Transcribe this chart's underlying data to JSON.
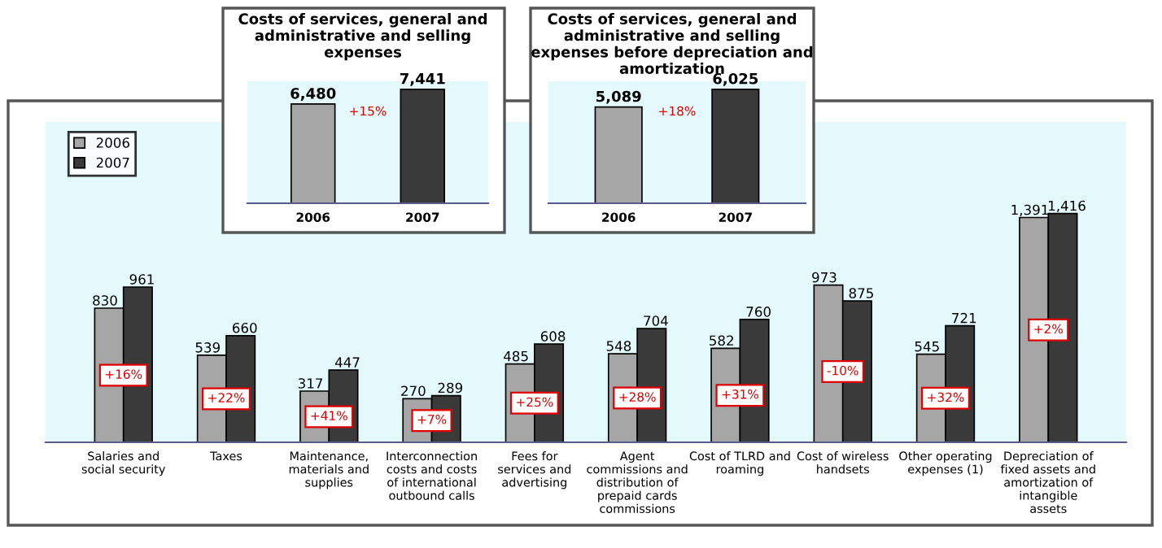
{
  "chart_data": [
    {
      "type": "bar",
      "title": "Costs of services, general and administrative and selling expenses",
      "categories": [
        "2006",
        "2007"
      ],
      "values": [
        6480,
        7441
      ],
      "value_labels": [
        "6,480",
        "7,441"
      ],
      "colors": [
        "#a6a6a6",
        "#3a3a3a"
      ],
      "annotations": [
        "+15%"
      ]
    },
    {
      "type": "bar",
      "title": "Costs of services, general and administrative and selling expenses before depreciation and amortization",
      "categories": [
        "2006",
        "2007"
      ],
      "values": [
        5089,
        6025
      ],
      "value_labels": [
        "5,089",
        "6,025"
      ],
      "colors": [
        "#a6a6a6",
        "#3a3a3a"
      ],
      "annotations": [
        "+18%"
      ]
    },
    {
      "type": "bar",
      "categories": [
        "Salaries and social security",
        "Taxes",
        "Maintenance, materials and supplies",
        "Interconnection costs and costs of international outbound calls",
        "Fees for services and advertising",
        "Agent commissions and distribution of prepaid cards commissions",
        "Cost of TLRD and roaming",
        "Cost of wireless handsets",
        "Other operating expenses (1)",
        "Depreciation of fixed assets and amortization of intangible assets"
      ],
      "series": [
        {
          "name": "2006",
          "color": "#a6a6a6",
          "values": [
            830,
            539,
            317,
            270,
            485,
            548,
            582,
            973,
            545,
            1391
          ],
          "value_labels": [
            "830",
            "539",
            "317",
            "270",
            "485",
            "548",
            "582",
            "973",
            "545",
            "1,391"
          ]
        },
        {
          "name": "2007",
          "color": "#3a3a3a",
          "values": [
            961,
            660,
            447,
            289,
            608,
            704,
            760,
            875,
            721,
            1416
          ],
          "value_labels": [
            "961",
            "660",
            "447",
            "289",
            "608",
            "704",
            "760",
            "875",
            "721",
            "1,416"
          ]
        }
      ],
      "legend": "top left",
      "annotations": [
        "+16%",
        "+22%",
        "+41%",
        "+7%",
        "+25%",
        "+28%",
        "+31%",
        "-10%",
        "+32%",
        "+2%"
      ]
    }
  ]
}
